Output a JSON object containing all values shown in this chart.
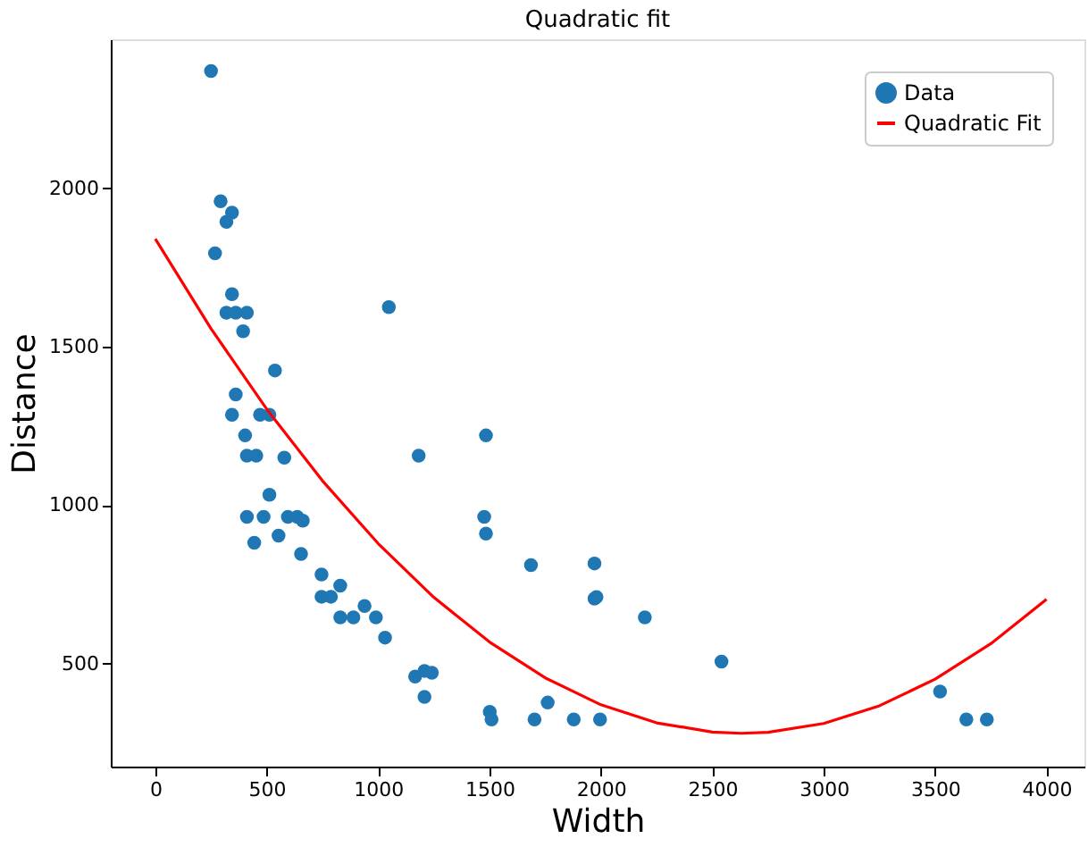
{
  "chart_data": {
    "type": "scatter",
    "title": "Quadratic fit",
    "xlabel": "Width",
    "ylabel": "Distance",
    "xlim": [
      -200,
      4170
    ],
    "ylim": [
      175,
      2470
    ],
    "xticks": [
      0,
      500,
      1000,
      1500,
      2000,
      2500,
      3000,
      3500,
      4000
    ],
    "yticks": [
      500,
      1000,
      1500,
      2000
    ],
    "legend": "top right",
    "grid": false,
    "series": [
      {
        "name": "Data",
        "type": "scatter",
        "marker": "circle",
        "color": "#1f77b4",
        "x": [
          250,
          268,
          293,
          344,
          319,
          344,
          319,
          361,
          411,
          394,
          537,
          1048,
          361,
          344,
          470,
          512,
          403,
          411,
          453,
          579,
          1182,
          512,
          411,
          486,
          595,
          637,
          662,
          444,
          553,
          654,
          746,
          830,
          746,
          788,
          830,
          889,
          939,
          990,
          1031,
          1166,
          1208,
          1241,
          1208,
          1484,
          1476,
          1484,
          1686,
          1971,
          1971,
          1980,
          2197,
          1501,
          1509,
          1702,
          1761,
          1878,
          1996,
          2541,
          3522,
          3640,
          3732
        ],
        "values": [
          2370,
          1795,
          1959,
          1923,
          1894,
          1666,
          1607,
          1607,
          1607,
          1549,
          1425,
          1625,
          1349,
          1285,
          1285,
          1285,
          1220,
          1156,
          1156,
          1150,
          1156,
          1033,
          963,
          963,
          963,
          963,
          951,
          881,
          904,
          846,
          781,
          746,
          711,
          711,
          646,
          646,
          682,
          646,
          582,
          459,
          477,
          471,
          395,
          1220,
          963,
          910,
          811,
          816,
          705,
          710,
          646,
          348,
          324,
          324,
          377,
          324,
          324,
          506,
          412,
          324,
          324
        ]
      },
      {
        "name": "Quadratic Fit",
        "type": "line",
        "color": "#ff0000",
        "marker": "none",
        "line_style": "solid",
        "x": [
          0,
          250,
          500,
          750,
          1000,
          1250,
          1500,
          1750,
          2000,
          2250,
          2500,
          2630,
          2750,
          3000,
          3250,
          3500,
          3750,
          4000
        ],
        "values": [
          1840,
          1557,
          1303,
          1077,
          879,
          709,
          568,
          455,
          370,
          313,
          284,
          280,
          283,
          311,
          367,
          451,
          563,
          703
        ]
      }
    ]
  }
}
